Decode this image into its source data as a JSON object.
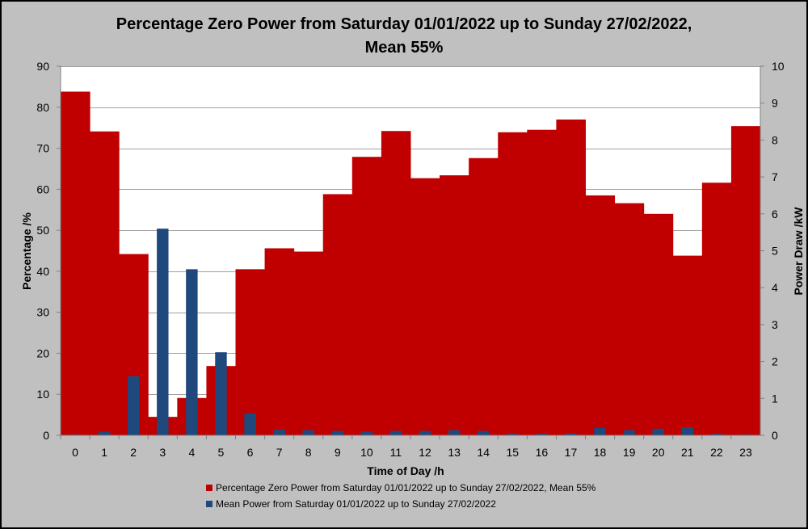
{
  "chart_data": {
    "type": "bar",
    "title_line1": "Percentage Zero Power from Saturday 01/01/2022 up to Sunday 27/02/2022,",
    "title_line2": "Mean 55%",
    "xlabel": "Time of Day /h",
    "ylabel_left": "Percentage /%",
    "ylabel_right": "Power Draw /kW",
    "ylim_left": [
      0,
      90
    ],
    "ylim_right": [
      0,
      10
    ],
    "yticks_left": [
      "0",
      "10",
      "20",
      "30",
      "40",
      "50",
      "60",
      "70",
      "80",
      "90"
    ],
    "yticks_right": [
      "0",
      "1",
      "2",
      "3",
      "4",
      "5",
      "6",
      "7",
      "8",
      "9",
      "10"
    ],
    "grid": true,
    "legend_position": "bottom",
    "categories": [
      "0",
      "1",
      "2",
      "3",
      "4",
      "5",
      "6",
      "7",
      "8",
      "9",
      "10",
      "11",
      "12",
      "13",
      "14",
      "15",
      "16",
      "17",
      "18",
      "19",
      "20",
      "21",
      "22",
      "23"
    ],
    "series": [
      {
        "name": "Percentage Zero Power from Saturday 01/01/2022 up to Sunday 27/02/2022, Mean 55%",
        "axis": "left",
        "color": "#c00000",
        "values": [
          83.8,
          74.1,
          44.2,
          4.5,
          9.1,
          16.9,
          40.5,
          45.6,
          44.8,
          58.8,
          67.9,
          74.2,
          62.7,
          63.4,
          67.6,
          73.9,
          74.5,
          77.0,
          58.5,
          56.6,
          54.0,
          43.8,
          61.6,
          75.4
        ]
      },
      {
        "name": "Mean Power from Saturday 01/01/2022 up to Sunday 27/02/2022",
        "axis": "right",
        "color": "#1f497d",
        "values": [
          0.02,
          0.1,
          1.6,
          5.6,
          4.5,
          2.25,
          0.6,
          0.15,
          0.14,
          0.12,
          0.1,
          0.12,
          0.12,
          0.14,
          0.12,
          0.04,
          0.04,
          0.06,
          0.2,
          0.14,
          0.18,
          0.22,
          0.04,
          0.02
        ]
      }
    ]
  }
}
